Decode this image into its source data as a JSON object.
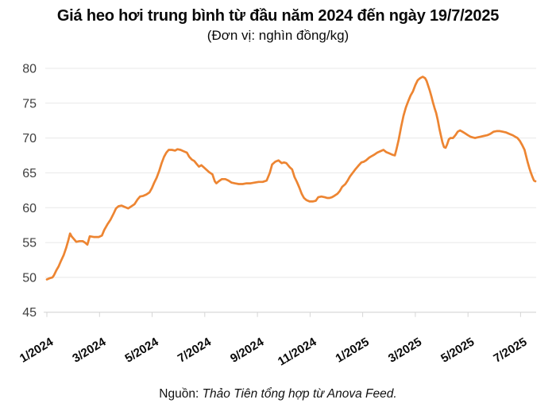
{
  "header": {
    "title": "Giá heo hơi trung bình từ đầu năm 2024 đến ngày 19/7/2025",
    "subtitle": "(Đơn vị: nghìn đồng/kg)"
  },
  "footer": {
    "source_label": "Nguồn:",
    "source_text": "Thảo Tiên tổng hợp từ Anova Feed."
  },
  "colors": {
    "line": "#ED8532",
    "gridline": "#e8e8e8",
    "axis": "#d6d6d6",
    "y_label": "#3f3f3f",
    "x_label": "#0a0a0a"
  },
  "chart_data": {
    "type": "line",
    "title": "Giá heo hơi trung bình từ đầu năm 2024 đến ngày 19/7/2025",
    "subtitle": "(Đơn vị: nghìn đồng/kg)",
    "ylabel": "nghìn đồng/kg",
    "xlabel": "",
    "ylim": [
      45,
      80
    ],
    "yticks": [
      45,
      50,
      55,
      60,
      65,
      70,
      75,
      80
    ],
    "grid": true,
    "legend": "none",
    "x_unit": "months since 1/2024",
    "xlim": [
      0,
      18.56
    ],
    "xticks": [
      {
        "t": 0,
        "label": "1/2024"
      },
      {
        "t": 2,
        "label": "3/2024"
      },
      {
        "t": 4,
        "label": "5/2024"
      },
      {
        "t": 6,
        "label": "7/2024"
      },
      {
        "t": 8,
        "label": "9/2024"
      },
      {
        "t": 10,
        "label": "11/2024"
      },
      {
        "t": 12,
        "label": "1/2025"
      },
      {
        "t": 14,
        "label": "3/2025"
      },
      {
        "t": 16,
        "label": "5/2025"
      },
      {
        "t": 18,
        "label": "7/2025"
      }
    ],
    "series": [
      {
        "name": "Giá heo hơi trung bình",
        "points": [
          [
            0,
            49.7
          ],
          [
            0.12,
            49.9
          ],
          [
            0.21,
            50.0
          ],
          [
            0.27,
            50.3
          ],
          [
            0.36,
            51.0
          ],
          [
            0.45,
            51.6
          ],
          [
            0.54,
            52.4
          ],
          [
            0.64,
            53.2
          ],
          [
            0.73,
            54.2
          ],
          [
            0.82,
            55.4
          ],
          [
            0.88,
            56.3
          ],
          [
            0.94,
            55.9
          ],
          [
            1.03,
            55.5
          ],
          [
            1.12,
            55.1
          ],
          [
            1.24,
            55.2
          ],
          [
            1.36,
            55.2
          ],
          [
            1.45,
            55.0
          ],
          [
            1.54,
            54.7
          ],
          [
            1.63,
            55.9
          ],
          [
            1.78,
            55.8
          ],
          [
            1.97,
            55.8
          ],
          [
            2.09,
            56.0
          ],
          [
            2.18,
            56.8
          ],
          [
            2.3,
            57.6
          ],
          [
            2.42,
            58.3
          ],
          [
            2.54,
            59.2
          ],
          [
            2.63,
            59.9
          ],
          [
            2.72,
            60.2
          ],
          [
            2.84,
            60.3
          ],
          [
            2.96,
            60.1
          ],
          [
            3.09,
            59.9
          ],
          [
            3.21,
            60.2
          ],
          [
            3.33,
            60.5
          ],
          [
            3.45,
            61.2
          ],
          [
            3.54,
            61.6
          ],
          [
            3.66,
            61.7
          ],
          [
            3.78,
            61.9
          ],
          [
            3.9,
            62.2
          ],
          [
            3.99,
            62.8
          ],
          [
            4.08,
            63.6
          ],
          [
            4.17,
            64.3
          ],
          [
            4.27,
            65.3
          ],
          [
            4.36,
            66.4
          ],
          [
            4.45,
            67.3
          ],
          [
            4.54,
            67.9
          ],
          [
            4.63,
            68.3
          ],
          [
            4.75,
            68.3
          ],
          [
            4.87,
            68.2
          ],
          [
            4.96,
            68.4
          ],
          [
            5.08,
            68.3
          ],
          [
            5.2,
            68.1
          ],
          [
            5.32,
            67.9
          ],
          [
            5.41,
            67.3
          ],
          [
            5.51,
            66.9
          ],
          [
            5.6,
            66.7
          ],
          [
            5.69,
            66.3
          ],
          [
            5.78,
            65.9
          ],
          [
            5.87,
            66.1
          ],
          [
            5.96,
            65.8
          ],
          [
            6.05,
            65.5
          ],
          [
            6.17,
            65.1
          ],
          [
            6.29,
            64.8
          ],
          [
            6.38,
            63.8
          ],
          [
            6.44,
            63.5
          ],
          [
            6.53,
            63.8
          ],
          [
            6.65,
            64.1
          ],
          [
            6.78,
            64.1
          ],
          [
            6.9,
            63.9
          ],
          [
            7.02,
            63.6
          ],
          [
            7.14,
            63.5
          ],
          [
            7.29,
            63.4
          ],
          [
            7.44,
            63.4
          ],
          [
            7.59,
            63.5
          ],
          [
            7.74,
            63.5
          ],
          [
            7.89,
            63.6
          ],
          [
            8.05,
            63.7
          ],
          [
            8.2,
            63.7
          ],
          [
            8.35,
            63.9
          ],
          [
            8.47,
            65.0
          ],
          [
            8.56,
            66.2
          ],
          [
            8.68,
            66.6
          ],
          [
            8.8,
            66.8
          ],
          [
            8.92,
            66.4
          ],
          [
            9.01,
            66.5
          ],
          [
            9.1,
            66.4
          ],
          [
            9.23,
            65.8
          ],
          [
            9.32,
            65.5
          ],
          [
            9.41,
            64.4
          ],
          [
            9.5,
            63.7
          ],
          [
            9.59,
            62.9
          ],
          [
            9.68,
            62.0
          ],
          [
            9.77,
            61.4
          ],
          [
            9.86,
            61.1
          ],
          [
            9.98,
            60.9
          ],
          [
            10.1,
            60.9
          ],
          [
            10.22,
            61.0
          ],
          [
            10.31,
            61.5
          ],
          [
            10.43,
            61.6
          ],
          [
            10.56,
            61.5
          ],
          [
            10.65,
            61.4
          ],
          [
            10.74,
            61.4
          ],
          [
            10.83,
            61.5
          ],
          [
            10.92,
            61.7
          ],
          [
            11.04,
            62.0
          ],
          [
            11.13,
            62.4
          ],
          [
            11.22,
            63.0
          ],
          [
            11.34,
            63.4
          ],
          [
            11.43,
            63.9
          ],
          [
            11.52,
            64.5
          ],
          [
            11.64,
            65.1
          ],
          [
            11.74,
            65.6
          ],
          [
            11.83,
            66.0
          ],
          [
            11.95,
            66.5
          ],
          [
            12.04,
            66.6
          ],
          [
            12.13,
            66.8
          ],
          [
            12.25,
            67.2
          ],
          [
            12.34,
            67.4
          ],
          [
            12.43,
            67.6
          ],
          [
            12.55,
            67.9
          ],
          [
            12.67,
            68.1
          ],
          [
            12.79,
            68.3
          ],
          [
            12.89,
            68.0
          ],
          [
            13.01,
            67.8
          ],
          [
            13.13,
            67.6
          ],
          [
            13.22,
            67.5
          ],
          [
            13.28,
            68.3
          ],
          [
            13.37,
            69.8
          ],
          [
            13.46,
            71.6
          ],
          [
            13.55,
            73.2
          ],
          [
            13.64,
            74.4
          ],
          [
            13.73,
            75.3
          ],
          [
            13.82,
            76.1
          ],
          [
            13.91,
            76.7
          ],
          [
            14.0,
            77.6
          ],
          [
            14.09,
            78.3
          ],
          [
            14.18,
            78.6
          ],
          [
            14.28,
            78.8
          ],
          [
            14.37,
            78.6
          ],
          [
            14.43,
            78.2
          ],
          [
            14.49,
            77.5
          ],
          [
            14.55,
            76.8
          ],
          [
            14.61,
            76.0
          ],
          [
            14.67,
            75.1
          ],
          [
            14.73,
            74.3
          ],
          [
            14.79,
            73.6
          ],
          [
            14.85,
            72.6
          ],
          [
            14.91,
            71.4
          ],
          [
            14.97,
            70.4
          ],
          [
            15.03,
            69.4
          ],
          [
            15.09,
            68.7
          ],
          [
            15.15,
            68.6
          ],
          [
            15.21,
            69.1
          ],
          [
            15.27,
            69.8
          ],
          [
            15.33,
            70.0
          ],
          [
            15.43,
            70.0
          ],
          [
            15.52,
            70.4
          ],
          [
            15.61,
            70.9
          ],
          [
            15.7,
            71.1
          ],
          [
            15.79,
            70.9
          ],
          [
            15.88,
            70.7
          ],
          [
            16.0,
            70.4
          ],
          [
            16.09,
            70.2
          ],
          [
            16.18,
            70.1
          ],
          [
            16.27,
            70.0
          ],
          [
            16.36,
            70.1
          ],
          [
            16.48,
            70.2
          ],
          [
            16.6,
            70.3
          ],
          [
            16.73,
            70.4
          ],
          [
            16.85,
            70.6
          ],
          [
            16.97,
            70.9
          ],
          [
            17.09,
            71.0
          ],
          [
            17.21,
            71.0
          ],
          [
            17.33,
            70.9
          ],
          [
            17.45,
            70.8
          ],
          [
            17.57,
            70.6
          ],
          [
            17.7,
            70.4
          ],
          [
            17.79,
            70.2
          ],
          [
            17.88,
            70.0
          ],
          [
            17.97,
            69.6
          ],
          [
            18.06,
            69.0
          ],
          [
            18.15,
            68.3
          ],
          [
            18.21,
            67.4
          ],
          [
            18.27,
            66.5
          ],
          [
            18.33,
            65.7
          ],
          [
            18.39,
            65.0
          ],
          [
            18.45,
            64.4
          ],
          [
            18.51,
            63.9
          ],
          [
            18.56,
            63.8
          ]
        ]
      }
    ]
  }
}
